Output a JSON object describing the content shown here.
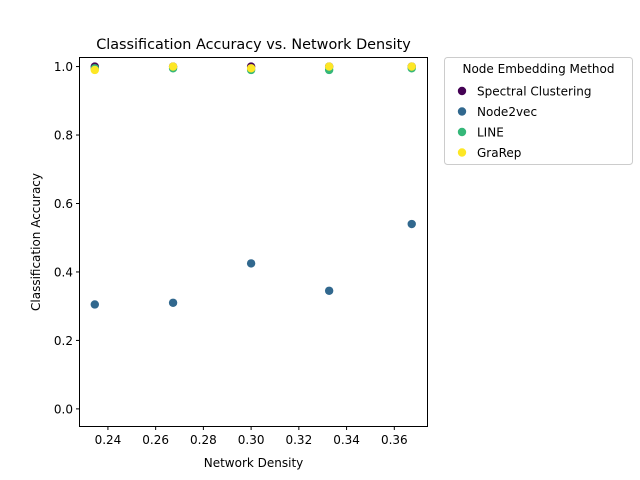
{
  "chart_data": {
    "type": "scatter",
    "title": "Classification Accuracy vs. Network Density",
    "xlabel": "Network Density",
    "ylabel": "Classification Accuracy",
    "xlim": [
      0.2283,
      0.3737
    ],
    "ylim": [
      -0.05,
      1.025
    ],
    "xticks": [
      0.24,
      0.26,
      0.28,
      0.3,
      0.32,
      0.34,
      0.36
    ],
    "xtick_labels": [
      "0.24",
      "0.26",
      "0.28",
      "0.30",
      "0.32",
      "0.34",
      "0.36"
    ],
    "yticks": [
      0.0,
      0.2,
      0.4,
      0.6,
      0.8,
      1.0
    ],
    "ytick_labels": [
      "0.0",
      "0.2",
      "0.4",
      "0.6",
      "0.8",
      "1.0"
    ],
    "grid": false,
    "legend": {
      "title": "Node Embedding Method",
      "placement": "outside-upper-right"
    },
    "x": [
      0.2345,
      0.2673,
      0.3,
      0.3327,
      0.3673
    ],
    "series": [
      {
        "name": "Spectral Clustering",
        "color": "#440154",
        "values": [
          1.0,
          1.0,
          1.0,
          1.0,
          1.0
        ]
      },
      {
        "name": "Node2vec",
        "color": "#31688e",
        "values": [
          0.305,
          0.31,
          0.425,
          0.345,
          0.54
        ]
      },
      {
        "name": "LINE",
        "color": "#35b779",
        "values": [
          0.995,
          0.995,
          0.99,
          0.99,
          0.995
        ]
      },
      {
        "name": "GraRep",
        "color": "#fde725",
        "values": [
          0.99,
          1.0,
          0.995,
          1.0,
          1.0
        ]
      }
    ]
  }
}
